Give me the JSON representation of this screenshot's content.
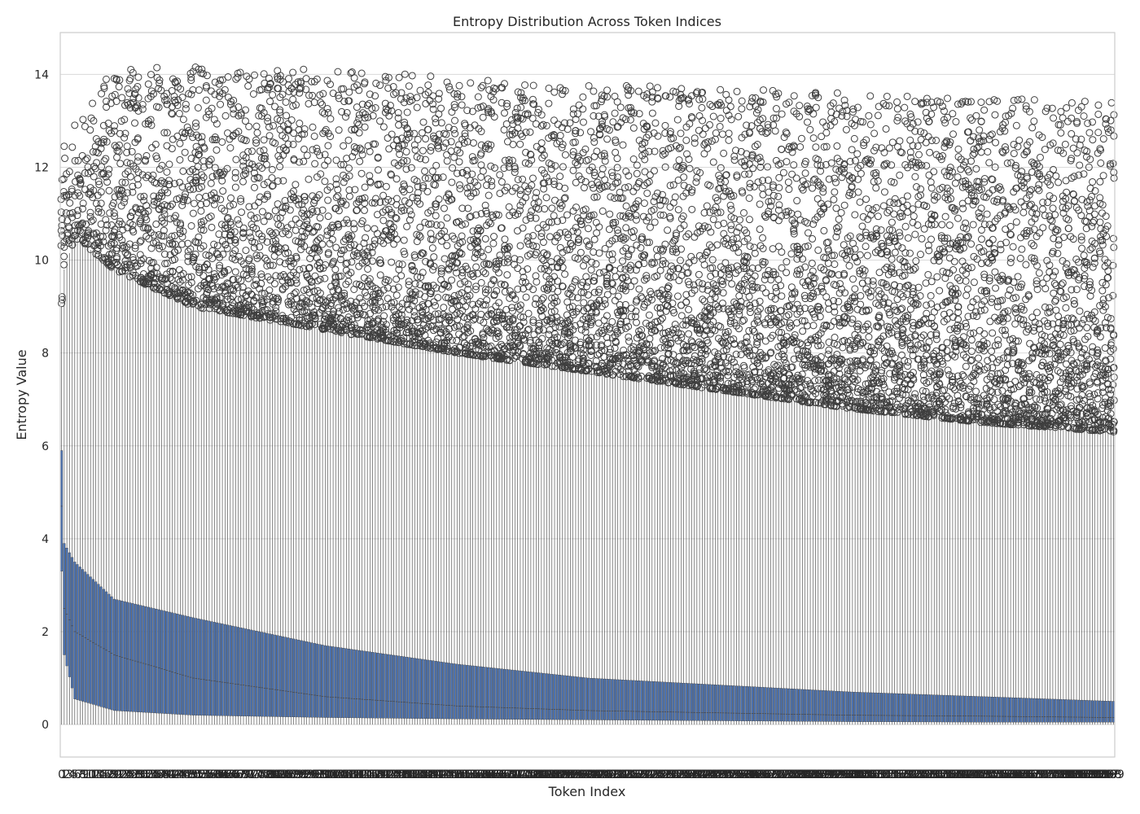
{
  "chart_data": {
    "type": "box",
    "title": "Entropy Distribution Across Token Indices",
    "xlabel": "Token Index",
    "ylabel": "Entropy Value",
    "ylim": [
      -0.7,
      14.9
    ],
    "yticks": [
      0,
      2,
      4,
      6,
      8,
      10,
      12,
      14
    ],
    "x_range": [
      0,
      399
    ],
    "n_categories": 400,
    "grid": true,
    "legend": "none",
    "colors": {
      "box_fill": "#4c72b0",
      "box_edge": "#3f3f3f",
      "whisker": "#3f3f3f",
      "outlier": "#3f3f3f",
      "grid": "#d9d9d9",
      "frame": "#cccccc"
    },
    "summary_at_index": [
      {
        "index": 0,
        "whisker_low": 0.0,
        "q1": 3.3,
        "median": 4.7,
        "q3": 5.9,
        "whisker_high": 9.0
      },
      {
        "index": 1,
        "whisker_low": 0.0,
        "q1": 1.5,
        "median": 2.5,
        "q3": 3.9,
        "whisker_high": 9.8
      },
      {
        "index": 5,
        "whisker_low": 0.0,
        "q1": 0.55,
        "median": 2.0,
        "q3": 3.5,
        "whisker_high": 10.5
      },
      {
        "index": 20,
        "whisker_low": 0.0,
        "q1": 0.3,
        "median": 1.5,
        "q3": 2.7,
        "whisker_high": 9.8
      },
      {
        "index": 50,
        "whisker_low": 0.0,
        "q1": 0.2,
        "median": 1.0,
        "q3": 2.3,
        "whisker_high": 9.0
      },
      {
        "index": 100,
        "whisker_low": 0.0,
        "q1": 0.15,
        "median": 0.6,
        "q3": 1.7,
        "whisker_high": 8.5
      },
      {
        "index": 150,
        "whisker_low": 0.0,
        "q1": 0.12,
        "median": 0.4,
        "q3": 1.3,
        "whisker_high": 8.0
      },
      {
        "index": 200,
        "whisker_low": 0.0,
        "q1": 0.1,
        "median": 0.3,
        "q3": 1.0,
        "whisker_high": 7.6
      },
      {
        "index": 250,
        "whisker_low": 0.0,
        "q1": 0.08,
        "median": 0.25,
        "q3": 0.85,
        "whisker_high": 7.2
      },
      {
        "index": 300,
        "whisker_low": 0.0,
        "q1": 0.06,
        "median": 0.2,
        "q3": 0.7,
        "whisker_high": 6.8
      },
      {
        "index": 350,
        "whisker_low": 0.0,
        "q1": 0.05,
        "median": 0.18,
        "q3": 0.6,
        "whisker_high": 6.5
      },
      {
        "index": 399,
        "whisker_low": 0.0,
        "q1": 0.05,
        "median": 0.15,
        "q3": 0.5,
        "whisker_high": 6.3
      }
    ],
    "outlier_max_trend": [
      {
        "index": 0,
        "max": 12.5
      },
      {
        "index": 20,
        "max": 14.2
      },
      {
        "index": 100,
        "max": 14.1
      },
      {
        "index": 200,
        "max": 13.8
      },
      {
        "index": 300,
        "max": 13.6
      },
      {
        "index": 399,
        "max": 13.4
      }
    ],
    "x_tick_labels": [
      "0",
      "1",
      "2",
      "3",
      "4",
      "5",
      "6",
      "7",
      "8",
      "9",
      "10",
      "11",
      "12",
      "13",
      "14",
      "15",
      "16",
      "17",
      "18",
      "19",
      "20",
      "21",
      "22",
      "23",
      "24",
      "25",
      "26",
      "27",
      "28",
      "29",
      "30",
      "31",
      "32",
      "33",
      "34",
      "35",
      "36",
      "37",
      "38",
      "39",
      "40",
      "41",
      "42",
      "43",
      "44",
      "45",
      "46",
      "47",
      "48",
      "49",
      "50",
      "51",
      "52",
      "53",
      "54",
      "55",
      "56",
      "57",
      "58",
      "59",
      "60",
      "61",
      "62",
      "63",
      "64",
      "65",
      "66",
      "67",
      "68",
      "69",
      "70",
      "71",
      "72",
      "73",
      "74",
      "75",
      "76",
      "77",
      "78",
      "79",
      "80",
      "81",
      "82",
      "83",
      "84",
      "85",
      "86",
      "87",
      "88",
      "89",
      "90",
      "91",
      "92",
      "93",
      "94",
      "95",
      "96",
      "97",
      "98",
      "99",
      "100",
      "101",
      "102",
      "103",
      "104",
      "105",
      "106",
      "107",
      "108",
      "109",
      "110",
      "111",
      "112",
      "113",
      "114",
      "115",
      "116",
      "117",
      "118",
      "119",
      "120",
      "121",
      "122",
      "123",
      "124",
      "125",
      "126",
      "127",
      "128",
      "129",
      "130",
      "131",
      "132",
      "133",
      "134",
      "135",
      "136",
      "137",
      "138",
      "139",
      "140",
      "141",
      "142",
      "143",
      "144",
      "145",
      "146",
      "147",
      "148",
      "149",
      "150",
      "151",
      "152",
      "153",
      "154",
      "155",
      "156",
      "157",
      "158",
      "159",
      "160",
      "161",
      "162",
      "163",
      "164",
      "165",
      "166",
      "167",
      "168",
      "169",
      "170",
      "171",
      "172",
      "173",
      "174",
      "175",
      "176",
      "177",
      "178",
      "179",
      "180",
      "181",
      "182",
      "183",
      "184",
      "185",
      "186",
      "187",
      "188",
      "189",
      "190",
      "191",
      "192",
      "193",
      "194",
      "195",
      "196",
      "197",
      "198",
      "199",
      "200",
      "201",
      "202",
      "203",
      "204",
      "205",
      "206",
      "207",
      "208",
      "209",
      "210",
      "211",
      "212",
      "213",
      "214",
      "215",
      "216",
      "217",
      "218",
      "219",
      "220",
      "221",
      "222",
      "223",
      "224",
      "225",
      "226",
      "227",
      "228",
      "229",
      "230",
      "231",
      "232",
      "233",
      "234",
      "235",
      "236",
      "237",
      "238",
      "239",
      "240",
      "241",
      "242",
      "243",
      "244",
      "245",
      "246",
      "247",
      "248",
      "249",
      "250",
      "251",
      "252",
      "253",
      "254",
      "255",
      "256",
      "257",
      "258",
      "259",
      "260",
      "261",
      "262",
      "263",
      "264",
      "265",
      "266",
      "267",
      "268",
      "269",
      "270",
      "271",
      "272",
      "273",
      "274",
      "275",
      "276",
      "277",
      "278",
      "279",
      "280",
      "281",
      "282",
      "283",
      "284",
      "285",
      "286",
      "287",
      "288",
      "289",
      "290",
      "291",
      "292",
      "293",
      "294",
      "295",
      "296",
      "297",
      "298",
      "299",
      "300",
      "301",
      "302",
      "303",
      "304",
      "305",
      "306",
      "307",
      "308",
      "309",
      "310",
      "311",
      "312",
      "313",
      "314",
      "315",
      "316",
      "317",
      "318",
      "319",
      "320",
      "321",
      "322",
      "323",
      "324",
      "325",
      "326",
      "327",
      "328",
      "329",
      "330",
      "331",
      "332",
      "333",
      "334",
      "335",
      "336",
      "337",
      "338",
      "339",
      "340",
      "341",
      "342",
      "343",
      "344",
      "345",
      "346",
      "347",
      "348",
      "349",
      "350",
      "351",
      "352",
      "353",
      "354",
      "355",
      "356",
      "357",
      "358",
      "359",
      "360",
      "361",
      "362",
      "363",
      "364",
      "365",
      "366",
      "367",
      "368",
      "369",
      "370",
      "371",
      "372",
      "373",
      "374",
      "375",
      "376",
      "377",
      "378",
      "379",
      "380",
      "381",
      "382",
      "383",
      "384",
      "385",
      "386",
      "387",
      "388",
      "389",
      "390",
      "391",
      "392",
      "393",
      "394",
      "395",
      "396",
      "397",
      "398",
      "399"
    ]
  }
}
